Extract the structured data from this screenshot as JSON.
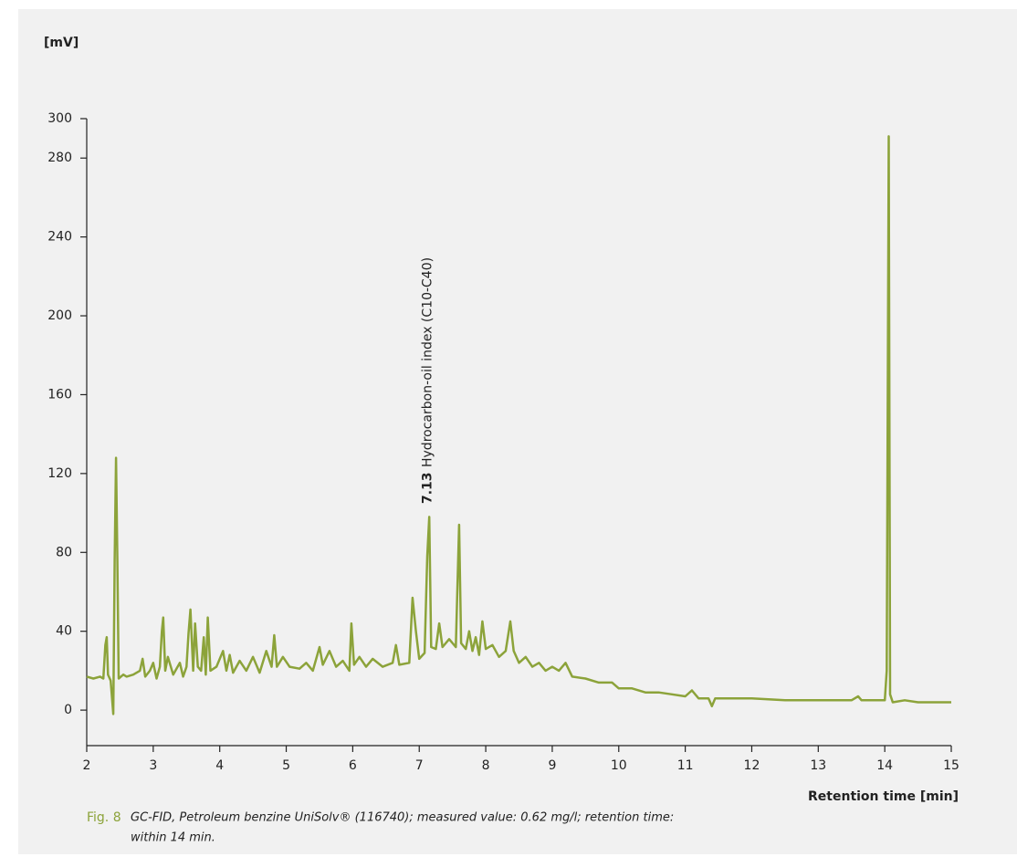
{
  "chart_data": {
    "type": "line",
    "y_label": "[mV]",
    "x_label": "Retention time [min]",
    "annotation_value": "7.13",
    "annotation_text": "Hydrocarbon-oil index (C10-C40)",
    "annotation_x": 7.13,
    "caption_label": "Fig. 8",
    "caption_lines": [
      "GC-FID, Petroleum benzine UniSolv® (116740); measured value: 0.62 mg/l; retention time:",
      "within 14 min."
    ],
    "color": "#8ca33a",
    "xlim": [
      2,
      15
    ],
    "xticks": [
      2,
      3,
      4,
      5,
      6,
      7,
      8,
      9,
      10,
      11,
      12,
      13,
      14,
      15
    ],
    "ylim": [
      -18,
      300
    ],
    "yticks": [
      0,
      40,
      80,
      120,
      160,
      200,
      240,
      280,
      300
    ],
    "x": [
      2.0,
      2.1,
      2.2,
      2.25,
      2.28,
      2.3,
      2.32,
      2.36,
      2.4,
      2.42,
      2.44,
      2.46,
      2.48,
      2.55,
      2.6,
      2.7,
      2.8,
      2.84,
      2.88,
      2.95,
      3.0,
      3.05,
      3.1,
      3.13,
      3.15,
      3.18,
      3.22,
      3.3,
      3.4,
      3.45,
      3.5,
      3.53,
      3.56,
      3.6,
      3.63,
      3.67,
      3.72,
      3.76,
      3.79,
      3.82,
      3.86,
      3.95,
      4.05,
      4.1,
      4.15,
      4.2,
      4.3,
      4.4,
      4.5,
      4.6,
      4.7,
      4.78,
      4.82,
      4.86,
      4.95,
      5.05,
      5.2,
      5.3,
      5.4,
      5.5,
      5.55,
      5.65,
      5.75,
      5.85,
      5.95,
      5.98,
      6.02,
      6.1,
      6.2,
      6.3,
      6.45,
      6.6,
      6.65,
      6.7,
      6.85,
      6.9,
      6.95,
      7.0,
      7.08,
      7.12,
      7.15,
      7.18,
      7.25,
      7.3,
      7.35,
      7.45,
      7.55,
      7.57,
      7.6,
      7.63,
      7.7,
      7.75,
      7.8,
      7.85,
      7.9,
      7.95,
      8.0,
      8.1,
      8.2,
      8.3,
      8.37,
      8.42,
      8.5,
      8.6,
      8.7,
      8.8,
      8.9,
      9.0,
      9.1,
      9.2,
      9.3,
      9.5,
      9.7,
      9.9,
      10.0,
      10.2,
      10.4,
      10.6,
      10.8,
      11.0,
      11.1,
      11.2,
      11.35,
      11.4,
      11.45,
      12.0,
      12.5,
      13.0,
      13.5,
      13.6,
      13.65,
      14.0,
      14.03,
      14.06,
      14.08,
      14.12,
      14.3,
      14.5,
      15.0
    ],
    "values": [
      17,
      16,
      17,
      16,
      33,
      37,
      18,
      15,
      -2,
      76,
      128,
      78,
      16,
      18,
      17,
      18,
      20,
      26,
      17,
      20,
      24,
      16,
      22,
      40,
      47,
      20,
      27,
      18,
      24,
      17,
      22,
      39,
      51,
      20,
      44,
      22,
      20,
      37,
      18,
      47,
      20,
      22,
      30,
      20,
      28,
      19,
      25,
      20,
      27,
      19,
      30,
      22,
      38,
      22,
      27,
      22,
      21,
      24,
      20,
      32,
      23,
      30,
      22,
      25,
      20,
      44,
      23,
      27,
      22,
      26,
      22,
      24,
      33,
      23,
      24,
      57,
      40,
      26,
      29,
      78,
      98,
      32,
      31,
      44,
      32,
      36,
      32,
      58,
      94,
      34,
      31,
      40,
      30,
      37,
      28,
      45,
      31,
      33,
      27,
      30,
      45,
      30,
      24,
      27,
      22,
      24,
      20,
      22,
      20,
      24,
      17,
      16,
      14,
      14,
      11,
      11,
      9,
      9,
      8,
      7,
      10,
      6,
      6,
      2,
      6,
      6,
      5,
      5,
      5,
      7,
      5,
      5,
      20,
      291,
      8,
      4,
      5,
      4,
      4
    ]
  }
}
